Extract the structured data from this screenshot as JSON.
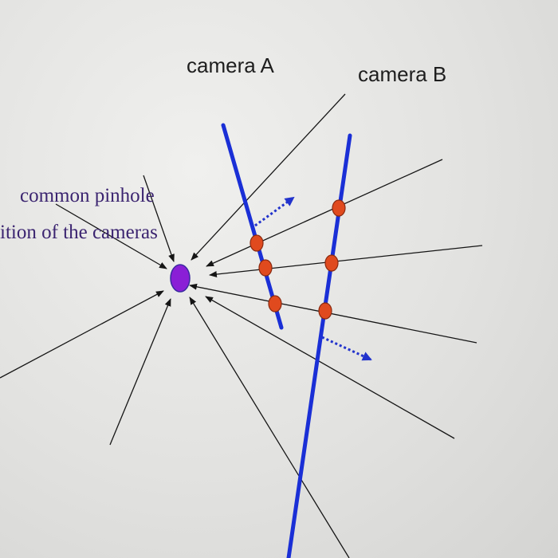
{
  "labels": {
    "camera_a": "camera A",
    "camera_b": "camera B",
    "pinhole_line1": "common pinhole",
    "pinhole_line2": "ition of the cameras"
  },
  "colors": {
    "camera_line": "#1a2fd6",
    "ray": "#151515",
    "pinhole_fill": "#8a1fd6",
    "pinhole_stroke": "#3a2aa0",
    "intersection_fill": "#e04a1e",
    "intersection_stroke": "#8a2a10",
    "direction_arrow": "#2233cc",
    "label_text": "#1e1e1e",
    "pinhole_text": "#3b2470"
  },
  "icons": {
    "pinhole": "purple-circle",
    "intersection": "orange-circle",
    "direction": "dotted-arrow"
  }
}
